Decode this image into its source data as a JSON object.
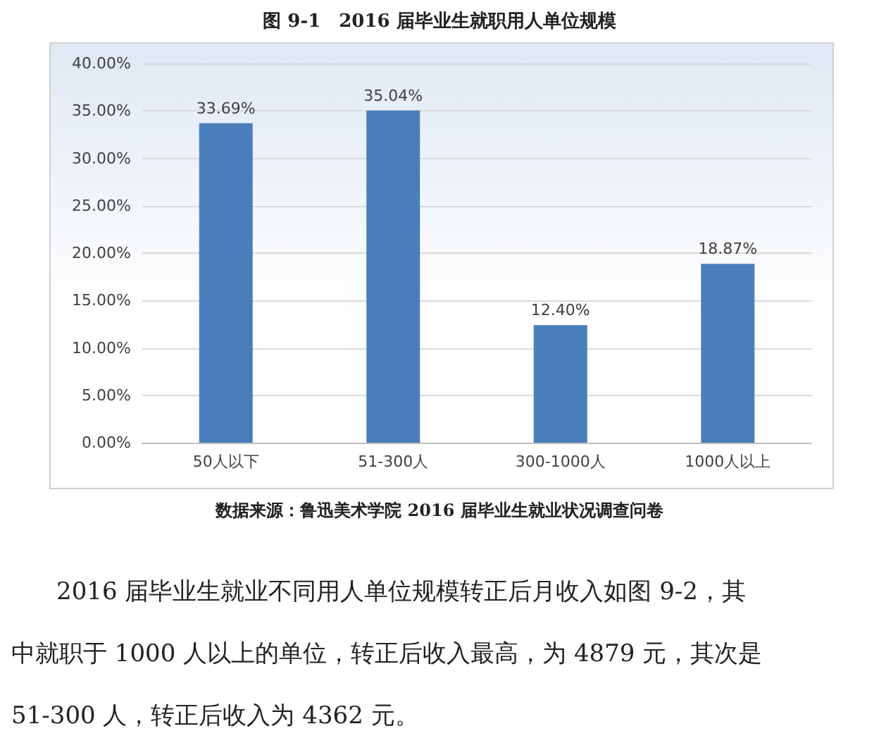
{
  "chart_data": {
    "type": "bar",
    "title": "图 9-1　2016 届毕业生就职用人单位规模",
    "categories": [
      "50人以下",
      "51-300人",
      "300-1000人",
      "1000人以上"
    ],
    "values": [
      33.69,
      35.04,
      12.4,
      18.87
    ],
    "value_labels": [
      "33.69%",
      "35.04%",
      "12.40%",
      "18.87%"
    ],
    "color": "#4a7ebb",
    "ylim": [
      0,
      40
    ],
    "yticks": [
      {
        "value": 0,
        "label": "0.00%"
      },
      {
        "value": 5,
        "label": "5.00%"
      },
      {
        "value": 10,
        "label": "10.00%"
      },
      {
        "value": 15,
        "label": "15.00%"
      },
      {
        "value": 20,
        "label": "20.00%"
      },
      {
        "value": 25,
        "label": "25.00%"
      },
      {
        "value": 30,
        "label": "30.00%"
      },
      {
        "value": 35,
        "label": "35.00%"
      },
      {
        "value": 40,
        "label": "40.00%"
      }
    ],
    "grid": "y",
    "annotations": [
      "数据来源：鲁迅美术学院 2016 届毕业生就业状况调查问卷",
      "2016 届毕业生就业不同用人单位规模转正后月收入如图 9-2，其",
      "中就职于 1000 人以上的单位，转正后收入最高，为 4879 元，其次是",
      "51-300 人，转正后收入为 4362 元。"
    ]
  }
}
